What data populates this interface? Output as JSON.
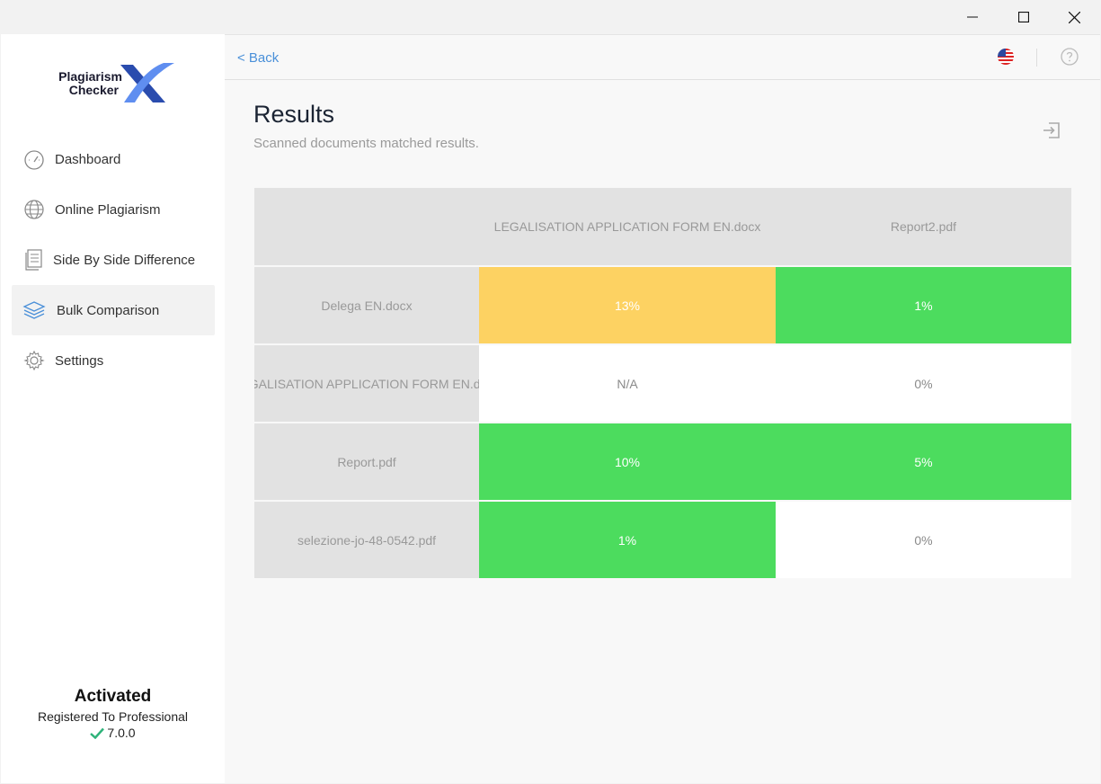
{
  "window": {
    "minimize_glyph": "—",
    "maximize_glyph": "☐",
    "close_glyph": "✕"
  },
  "logo": {
    "line1": "Plagiarism",
    "line2": "Checker"
  },
  "sidebar": {
    "items": [
      {
        "label": "Dashboard",
        "icon": "gauge-icon"
      },
      {
        "label": "Online Plagiarism",
        "icon": "globe-icon"
      },
      {
        "label": "Side By Side Difference",
        "icon": "document-icon"
      },
      {
        "label": "Bulk Comparison",
        "icon": "layers-icon",
        "active": true
      },
      {
        "label": "Settings",
        "icon": "gear-icon"
      }
    ]
  },
  "activation": {
    "status": "Activated",
    "registered": "Registered To Professional",
    "version": "7.0.0"
  },
  "topbar": {
    "back_label": "< Back"
  },
  "page": {
    "title": "Results",
    "subtitle": "Scanned documents matched results."
  },
  "table": {
    "columns": [
      "",
      "LEGALISATION APPLICATION FORM EN.docx",
      "Report2.pdf"
    ],
    "rows": [
      {
        "name": "Delega EN.docx",
        "cells": [
          {
            "value": "13%",
            "color": "#fdd262"
          },
          {
            "value": "1%",
            "color": "#4cdc5e"
          }
        ]
      },
      {
        "name": "LEGALISATION APPLICATION FORM EN.docx",
        "cells": [
          {
            "value": "N/A",
            "color": "#ffffff"
          },
          {
            "value": "0%",
            "color": "#ffffff"
          }
        ]
      },
      {
        "name": "Report.pdf",
        "cells": [
          {
            "value": "10%",
            "color": "#4cdc5e"
          },
          {
            "value": "5%",
            "color": "#4cdc5e"
          }
        ]
      },
      {
        "name": "selezione-jo-48-0542.pdf",
        "cells": [
          {
            "value": "1%",
            "color": "#4cdc5e"
          },
          {
            "value": "0%",
            "color": "#ffffff"
          }
        ]
      }
    ]
  },
  "colors": {
    "accent": "#4a90d9",
    "high": "#fdd262",
    "low": "#4cdc5e"
  }
}
